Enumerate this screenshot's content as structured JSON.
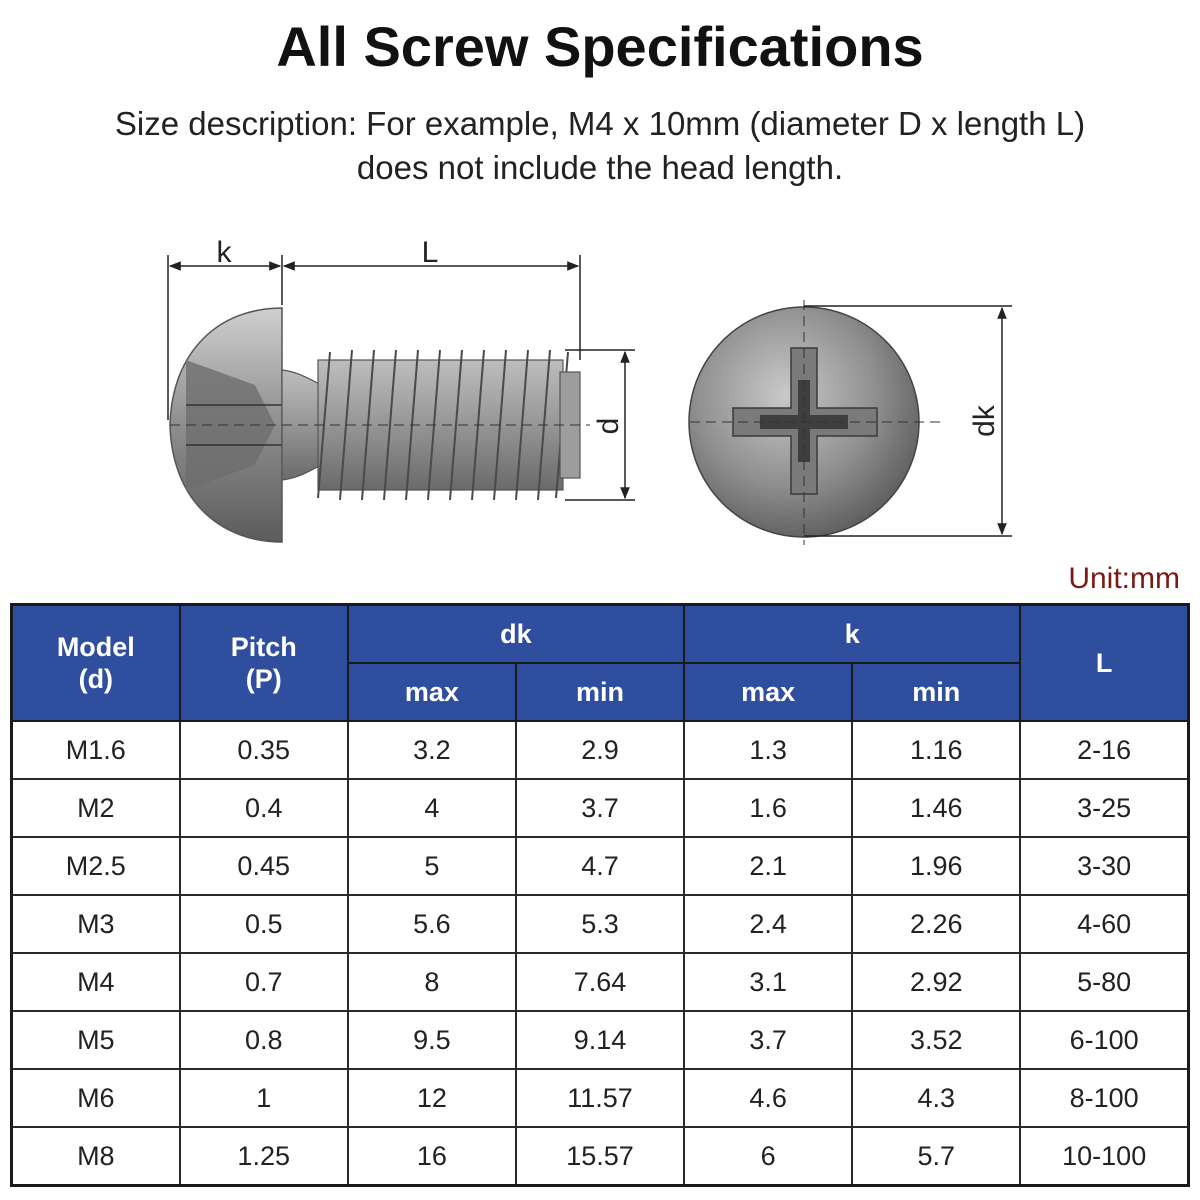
{
  "title": "All Screw Specifications",
  "subtitle": {
    "line1": "Size description: For example, M4 x 10mm (diameter D x length L)",
    "line2": "does not include the head length."
  },
  "diagram": {
    "label_k": "k",
    "label_L": "L",
    "label_d": "d",
    "label_dk": "dk"
  },
  "unit": "Unit:mm",
  "table": {
    "headers": {
      "model": [
        "Model",
        "(d)"
      ],
      "pitch": [
        "Pitch",
        "(P)"
      ],
      "dk": "dk",
      "k": "k",
      "L": "L",
      "max": "max",
      "min": "min"
    },
    "rows": [
      [
        "M1.6",
        "0.35",
        "3.2",
        "2.9",
        "1.3",
        "1.16",
        "2-16"
      ],
      [
        "M2",
        "0.4",
        "4",
        "3.7",
        "1.6",
        "1.46",
        "3-25"
      ],
      [
        "M2.5",
        "0.45",
        "5",
        "4.7",
        "2.1",
        "1.96",
        "3-30"
      ],
      [
        "M3",
        "0.5",
        "5.6",
        "5.3",
        "2.4",
        "2.26",
        "4-60"
      ],
      [
        "M4",
        "0.7",
        "8",
        "7.64",
        "3.1",
        "2.92",
        "5-80"
      ],
      [
        "M5",
        "0.8",
        "9.5",
        "9.14",
        "3.7",
        "3.52",
        "6-100"
      ],
      [
        "M6",
        "1",
        "12",
        "11.57",
        "4.6",
        "4.3",
        "8-100"
      ],
      [
        "M8",
        "1.25",
        "16",
        "15.57",
        "6",
        "5.7",
        "10-100"
      ]
    ]
  }
}
